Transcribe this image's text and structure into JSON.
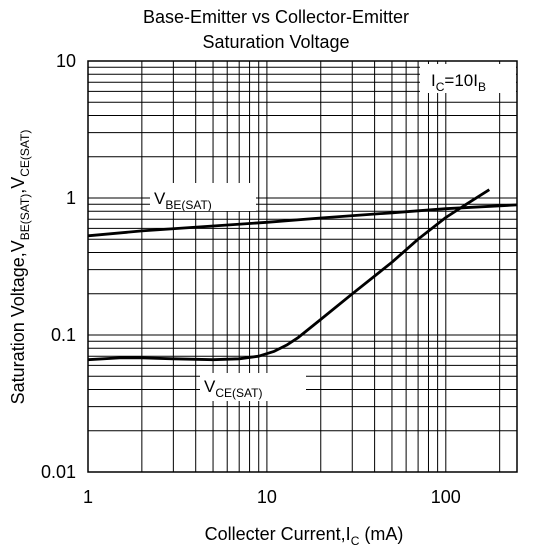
{
  "chart_data": {
    "type": "line",
    "title": [
      "Base-Emitter vs Collector-Emitter",
      "Saturation Voltage"
    ],
    "xlabel": {
      "main": "Collecter Current,I",
      "sub": "C",
      "unit": " (mA)"
    },
    "ylabel": {
      "main": "Saturation Voltage,V",
      "sub1": "BE(SAT)",
      "mid": ",V",
      "sub2": "CE(SAT)"
    },
    "xscale": "log",
    "yscale": "log",
    "xlim": [
      1,
      250
    ],
    "ylim": [
      0.01,
      10
    ],
    "xticks": [
      {
        "v": 1,
        "label": "1"
      },
      {
        "v": 10,
        "label": "10"
      },
      {
        "v": 100,
        "label": "100"
      }
    ],
    "yticks": [
      {
        "v": 10,
        "label": "10"
      },
      {
        "v": 1,
        "label": "1"
      },
      {
        "v": 0.1,
        "label": "0.1"
      },
      {
        "v": 0.01,
        "label": "0.01"
      }
    ],
    "grid": true,
    "condition": {
      "a": "I",
      "a_sub": "C",
      "b": "=10I",
      "b_sub": "B"
    },
    "series": [
      {
        "name": "V",
        "name_sub": "BE(SAT)",
        "x": [
          1,
          2,
          5,
          10,
          20,
          50,
          100,
          250
        ],
        "y": [
          0.53,
          0.575,
          0.625,
          0.665,
          0.715,
          0.78,
          0.835,
          0.89
        ]
      },
      {
        "name": "V",
        "name_sub": "CE(SAT)",
        "x": [
          1,
          1.5,
          2,
          3,
          5,
          7,
          9,
          11,
          13,
          15,
          20,
          30,
          50,
          70,
          100,
          130,
          175
        ],
        "y": [
          0.066,
          0.068,
          0.068,
          0.067,
          0.066,
          0.067,
          0.07,
          0.076,
          0.085,
          0.096,
          0.13,
          0.2,
          0.34,
          0.5,
          0.72,
          0.9,
          1.15
        ]
      }
    ]
  }
}
